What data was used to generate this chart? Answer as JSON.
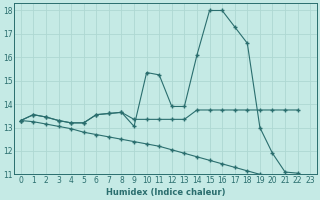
{
  "xlabel": "Humidex (Indice chaleur)",
  "xlim": [
    -0.5,
    23.5
  ],
  "ylim": [
    11,
    18.3
  ],
  "yticks": [
    11,
    12,
    13,
    14,
    15,
    16,
    17,
    18
  ],
  "xticks": [
    0,
    1,
    2,
    3,
    4,
    5,
    6,
    7,
    8,
    9,
    10,
    11,
    12,
    13,
    14,
    15,
    16,
    17,
    18,
    19,
    20,
    21,
    22,
    23
  ],
  "bg_color": "#c5eae5",
  "grid_color": "#aed8d2",
  "line_color": "#2a6e6e",
  "lines": [
    {
      "x": [
        0,
        1,
        2,
        3,
        4,
        5,
        6,
        7,
        8,
        9,
        10,
        11,
        12,
        13,
        14,
        15,
        16,
        17,
        18,
        19,
        20,
        21,
        22
      ],
      "y": [
        13.3,
        13.55,
        13.45,
        13.3,
        13.2,
        13.2,
        13.55,
        13.6,
        13.65,
        13.05,
        15.35,
        15.25,
        13.9,
        13.9,
        16.1,
        18.0,
        18.0,
        17.3,
        16.6,
        13.0,
        11.9,
        11.1,
        11.05
      ]
    },
    {
      "x": [
        0,
        1,
        2,
        3,
        4,
        5,
        6,
        7,
        8,
        9,
        10,
        11,
        12,
        13,
        14,
        15,
        16,
        17,
        18,
        19,
        20,
        21,
        22
      ],
      "y": [
        13.3,
        13.55,
        13.45,
        13.3,
        13.2,
        13.2,
        13.55,
        13.6,
        13.65,
        13.35,
        13.35,
        13.35,
        13.35,
        13.35,
        13.75,
        13.75,
        13.75,
        13.75,
        13.75,
        13.75,
        13.75,
        13.75,
        13.75
      ]
    },
    {
      "x": [
        0,
        1,
        2,
        3,
        4,
        5,
        6,
        7,
        8,
        9,
        10,
        11,
        12,
        13,
        14,
        15,
        16,
        17,
        18,
        19,
        20,
        21,
        22
      ],
      "y": [
        13.3,
        13.25,
        13.15,
        13.05,
        12.95,
        12.8,
        12.7,
        12.6,
        12.5,
        12.4,
        12.3,
        12.2,
        12.05,
        11.9,
        11.75,
        11.6,
        11.45,
        11.3,
        11.15,
        11.0,
        10.95,
        10.9,
        10.85
      ]
    }
  ],
  "marker": "+",
  "markersize": 3.5,
  "linewidth": 0.8,
  "tick_fontsize": 5.5,
  "xlabel_fontsize": 6.0,
  "ylabel_fontsize": 6.0
}
